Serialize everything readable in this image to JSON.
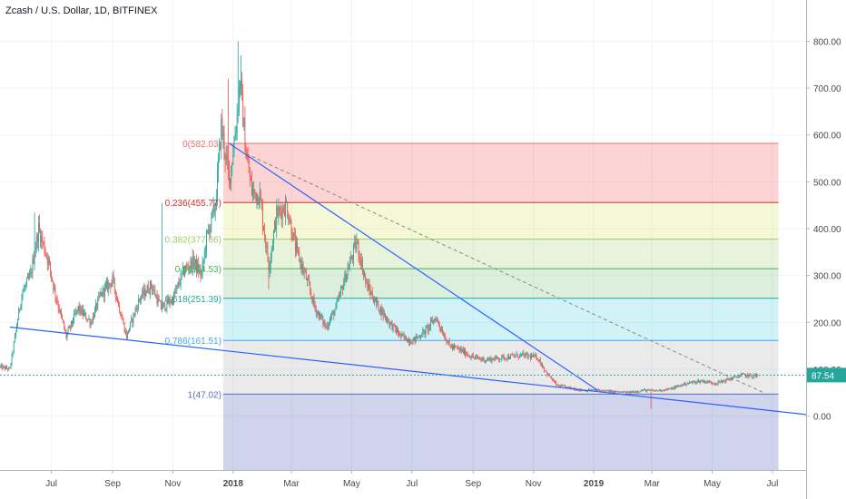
{
  "header": {
    "title": "Zcash / U.S. Dollar, 1D, BITFINEX"
  },
  "colors": {
    "up": "#26a69a",
    "down": "#ef5350",
    "wick": "#555555",
    "trendline": "#2962ff",
    "dashed": "#888888",
    "price_line": "#26a69a",
    "axis_border": "#b2b5be",
    "grid": "#f0f3fa",
    "label_text": "#4a4a4a"
  },
  "chart_data": {
    "type": "candlestick",
    "symbol": "Zcash / U.S. Dollar",
    "interval": "1D",
    "exchange": "BITFINEX",
    "x_labels": [
      {
        "label": "Jul",
        "date": "2017-07-01"
      },
      {
        "label": "Sep",
        "date": "2017-09-01"
      },
      {
        "label": "Nov",
        "date": "2017-11-01"
      },
      {
        "label": "2018",
        "date": "2018-01-01",
        "bold": true
      },
      {
        "label": "Mar",
        "date": "2018-03-01"
      },
      {
        "label": "May",
        "date": "2018-05-01"
      },
      {
        "label": "Jul",
        "date": "2018-07-01"
      },
      {
        "label": "Sep",
        "date": "2018-09-01"
      },
      {
        "label": "Nov",
        "date": "2018-11-01"
      },
      {
        "label": "2019",
        "date": "2019-01-01",
        "bold": true
      },
      {
        "label": "Mar",
        "date": "2019-03-01"
      },
      {
        "label": "May",
        "date": "2019-05-01"
      },
      {
        "label": "Jul",
        "date": "2019-07-01"
      }
    ],
    "x_range": [
      "2017-05-10",
      "2019-08-04"
    ],
    "y_ticks": [
      "800.00",
      "700.00",
      "600.00",
      "500.00",
      "400.00",
      "300.00",
      "200.00",
      "100.00",
      "0.00"
    ],
    "y_range": [
      -115,
      888
    ],
    "current_price": "87.54",
    "price_path": [
      [
        "2017-05-10",
        105
      ],
      [
        "2017-05-20",
        100
      ],
      [
        "2017-06-01",
        260
      ],
      [
        "2017-06-10",
        300
      ],
      [
        "2017-06-18",
        400
      ],
      [
        "2017-06-28",
        330
      ],
      [
        "2017-07-05",
        260
      ],
      [
        "2017-07-16",
        170
      ],
      [
        "2017-07-28",
        230
      ],
      [
        "2017-08-10",
        200
      ],
      [
        "2017-08-20",
        260
      ],
      [
        "2017-09-01",
        290
      ],
      [
        "2017-09-15",
        170
      ],
      [
        "2017-09-28",
        250
      ],
      [
        "2017-10-10",
        280
      ],
      [
        "2017-10-20",
        230
      ],
      [
        "2017-11-01",
        250
      ],
      [
        "2017-11-12",
        310
      ],
      [
        "2017-11-22",
        330
      ],
      [
        "2017-11-30",
        300
      ],
      [
        "2017-12-05",
        380
      ],
      [
        "2017-12-14",
        450
      ],
      [
        "2017-12-20",
        620
      ],
      [
        "2017-12-28",
        500
      ],
      [
        "2018-01-04",
        620
      ],
      [
        "2018-01-08",
        720
      ],
      [
        "2018-01-14",
        560
      ],
      [
        "2018-01-20",
        480
      ],
      [
        "2018-01-28",
        470
      ],
      [
        "2018-02-06",
        320
      ],
      [
        "2018-02-14",
        430
      ],
      [
        "2018-02-24",
        450
      ],
      [
        "2018-03-05",
        360
      ],
      [
        "2018-03-15",
        300
      ],
      [
        "2018-03-25",
        230
      ],
      [
        "2018-04-05",
        190
      ],
      [
        "2018-04-15",
        230
      ],
      [
        "2018-04-25",
        300
      ],
      [
        "2018-05-06",
        370
      ],
      [
        "2018-05-16",
        280
      ],
      [
        "2018-05-26",
        240
      ],
      [
        "2018-06-08",
        200
      ],
      [
        "2018-06-20",
        170
      ],
      [
        "2018-07-01",
        160
      ],
      [
        "2018-07-14",
        180
      ],
      [
        "2018-07-25",
        210
      ],
      [
        "2018-08-08",
        150
      ],
      [
        "2018-08-20",
        140
      ],
      [
        "2018-09-01",
        125
      ],
      [
        "2018-09-14",
        120
      ],
      [
        "2018-10-01",
        125
      ],
      [
        "2018-10-20",
        130
      ],
      [
        "2018-11-05",
        125
      ],
      [
        "2018-11-15",
        90
      ],
      [
        "2018-11-25",
        65
      ],
      [
        "2018-12-08",
        60
      ],
      [
        "2018-12-20",
        55
      ],
      [
        "2019-01-05",
        55
      ],
      [
        "2019-01-20",
        52
      ],
      [
        "2019-02-05",
        50
      ],
      [
        "2019-02-20",
        55
      ],
      [
        "2019-03-05",
        54
      ],
      [
        "2019-03-20",
        58
      ],
      [
        "2019-04-05",
        70
      ],
      [
        "2019-04-20",
        75
      ],
      [
        "2019-05-05",
        70
      ],
      [
        "2019-05-20",
        80
      ],
      [
        "2019-06-01",
        88
      ],
      [
        "2019-06-10",
        85
      ],
      [
        "2019-06-16",
        87.54
      ]
    ],
    "price_spikes": [
      [
        "2017-06-14",
        405,
        435
      ],
      [
        "2017-06-19",
        395,
        430
      ],
      [
        "2017-10-21",
        285,
        455
      ],
      [
        "2017-12-27",
        600,
        720
      ],
      [
        "2018-01-06",
        780,
        800
      ],
      [
        "2018-01-09",
        710,
        770
      ],
      [
        "2018-02-06",
        285,
        270
      ],
      [
        "2018-05-06",
        370,
        390
      ],
      [
        "2019-02-28",
        45,
        15
      ]
    ],
    "fibonacci": {
      "start": "2017-12-22",
      "end": "2019-07-07",
      "levels": [
        {
          "label": "0(582.03)",
          "ratio": 0,
          "value": 582.03,
          "color": "#e57373",
          "fill": "rgba(239,83,80,0.25)"
        },
        {
          "label": "0.236(455.77)",
          "ratio": 0.236,
          "value": 455.77,
          "color": "#d32f2f",
          "fill": "rgba(205,220,57,0.20)"
        },
        {
          "label": "0.382(377.66)",
          "ratio": 0.382,
          "value": 377.66,
          "color": "#9ccc65",
          "fill": "rgba(139,195,74,0.20)"
        },
        {
          "label": "0.5(314.53)",
          "ratio": 0.5,
          "value": 314.53,
          "color": "#4caf50",
          "fill": "rgba(76,175,80,0.20)"
        },
        {
          "label": "0.618(251.39)",
          "ratio": 0.618,
          "value": 251.39,
          "color": "#26a69a",
          "fill": "rgba(0,188,212,0.18)"
        },
        {
          "label": "0.786(161.51)",
          "ratio": 0.786,
          "value": 161.51,
          "color": "#42a5f5",
          "fill": "rgba(158,158,158,0.22)"
        },
        {
          "label": "1(47.02)",
          "ratio": 1,
          "value": 47.02,
          "color": "#5c6bc0",
          "fill": "rgba(63,81,181,0.25)"
        }
      ],
      "bottom_fill_to": -115,
      "visible_label_overrides": {
        "0.5(314.53)": "0.5(314.53)",
        "0.618(251.39)": "0.618(251.39)"
      }
    },
    "trendlines": [
      {
        "name": "support",
        "points": [
          [
            "2017-05-20",
            190
          ],
          [
            "2019-07-28",
            5
          ]
        ],
        "extend": true,
        "style": "solid"
      },
      {
        "name": "resistance",
        "points": [
          [
            "2017-12-28",
            582
          ],
          [
            "2019-01-05",
            55
          ]
        ],
        "style": "solid"
      },
      {
        "name": "projection",
        "points": [
          [
            "2018-01-14",
            560
          ],
          [
            "2019-06-22",
            50
          ]
        ],
        "style": "dashed"
      }
    ]
  }
}
